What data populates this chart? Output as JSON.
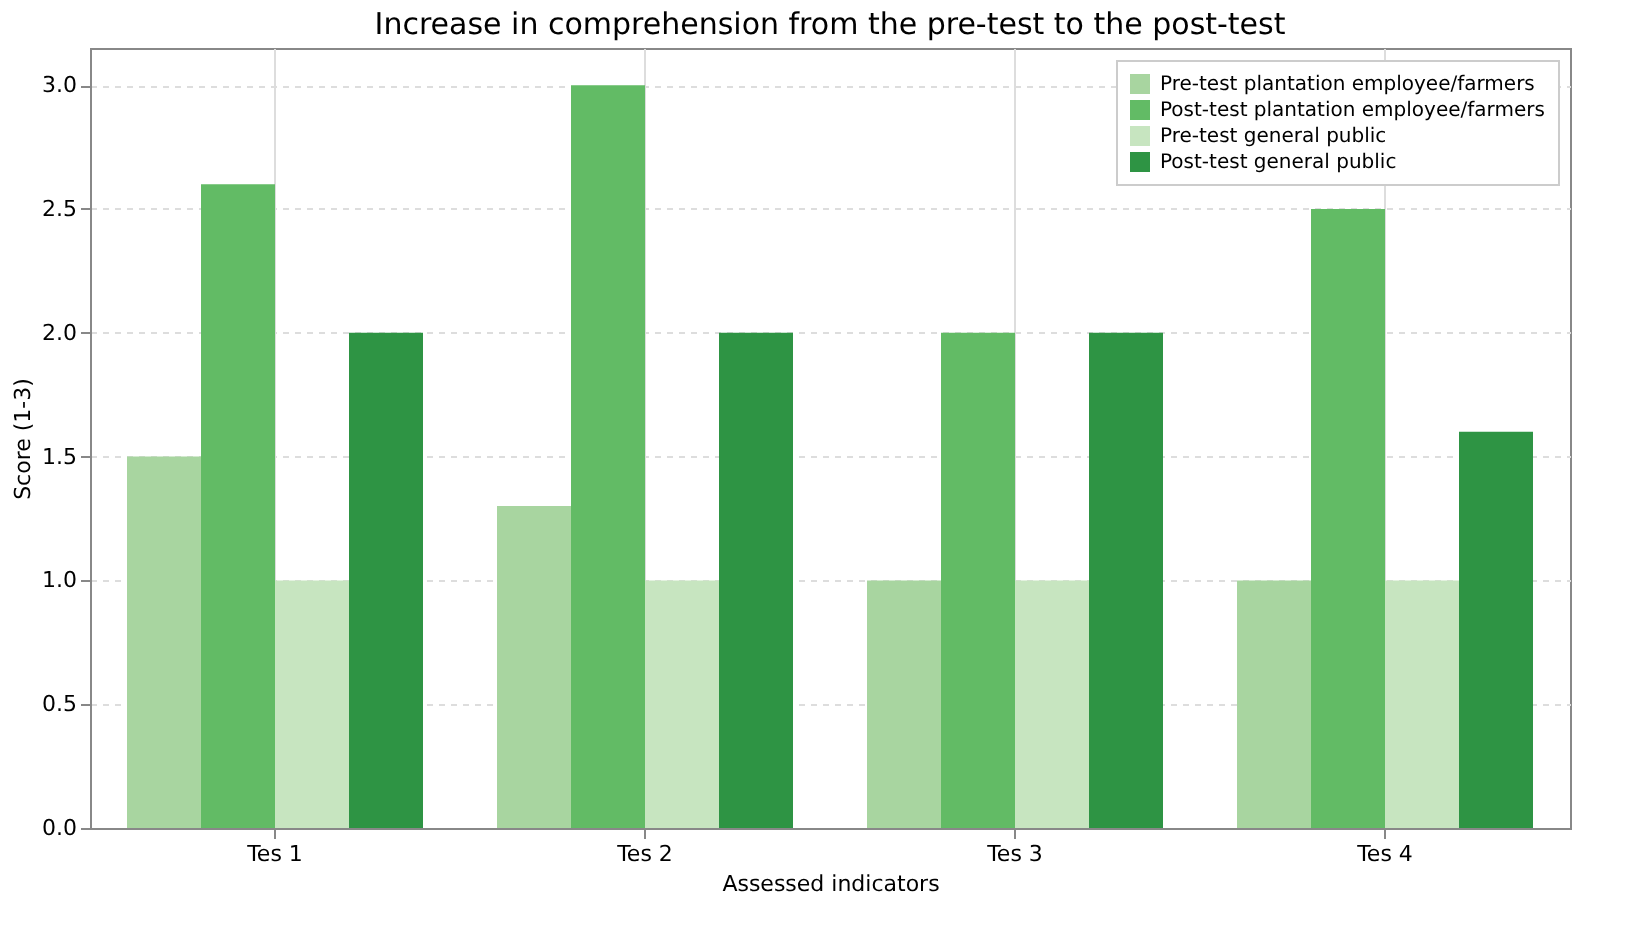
{
  "chart_data": {
    "type": "bar",
    "title": "Increase in comprehension from the pre-test to the post-test",
    "xlabel": "Assessed indicators",
    "ylabel": "Score (1-3)",
    "categories": [
      "Tes 1",
      "Tes 2",
      "Tes 3",
      "Tes 4"
    ],
    "series": [
      {
        "name": "Pre-test plantation employee/farmers",
        "color": "#a8d5a0",
        "values": [
          1.5,
          1.3,
          1.0,
          1.0
        ]
      },
      {
        "name": "Post-test plantation employee/farmers",
        "color": "#62bb65",
        "values": [
          2.6,
          3.0,
          2.0,
          2.5
        ]
      },
      {
        "name": "Pre-test general public",
        "color": "#c7e5c0",
        "values": [
          1.0,
          1.0,
          1.0,
          1.0
        ]
      },
      {
        "name": "Post-test general public",
        "color": "#2e9444",
        "values": [
          2.0,
          2.0,
          2.0,
          1.6
        ]
      }
    ],
    "ylim": [
      0,
      3.15
    ],
    "yticks": [
      {
        "value": 0,
        "label": "0.0"
      },
      0.5,
      {
        "value": 1,
        "label": "1.0"
      },
      1.5,
      {
        "value": 2,
        "label": "2.0"
      },
      2.5,
      {
        "value": 3,
        "label": "3.0"
      }
    ],
    "grid": true,
    "legend": "top right"
  }
}
